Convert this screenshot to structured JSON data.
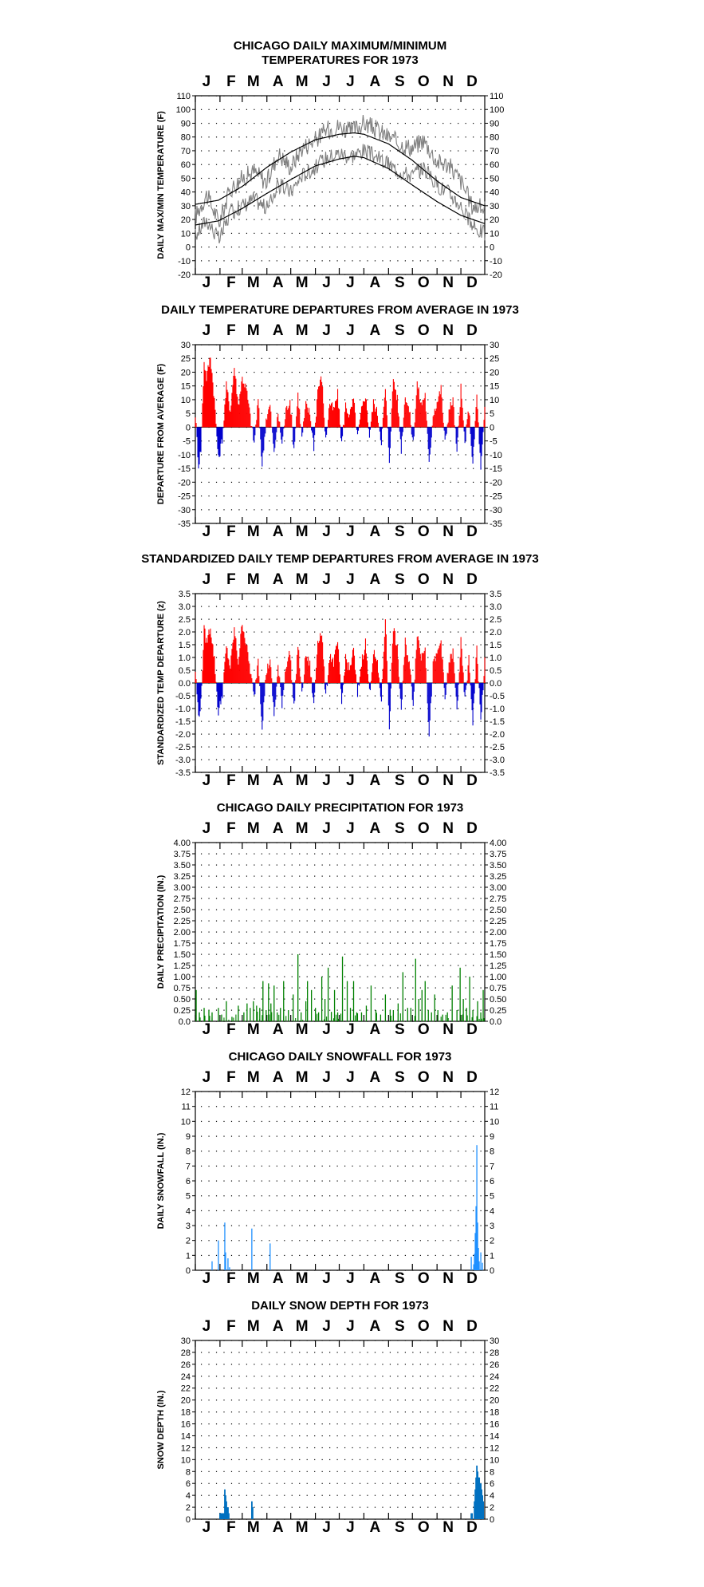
{
  "colors": {
    "warm": "#ff0000",
    "cool": "#0000cc",
    "max_temp": "#808080",
    "precip": "#008000",
    "snowfall": "#1e90ff",
    "snow_depth": "#0070c0",
    "grid": "#000000"
  },
  "chart_data": [
    {
      "id": "temps",
      "type": "line",
      "title_lines": [
        "CHICAGO DAILY MAXIMUM/MINIMUM",
        "TEMPERATURES FOR 1973"
      ],
      "ylabel": "DAILY MAX/MIN TEMPERATURE (F)",
      "months": [
        "J",
        "F",
        "M",
        "A",
        "M",
        "J",
        "J",
        "A",
        "S",
        "O",
        "N",
        "D"
      ],
      "ylim": [
        -20,
        110
      ],
      "yticks": [
        -20,
        -10,
        0,
        10,
        20,
        30,
        40,
        50,
        60,
        70,
        80,
        90,
        100,
        110
      ],
      "grid": true,
      "series": [],
      "daily_high_anchors": {
        "x": [
          1,
          15,
          31,
          45,
          60,
          75,
          91,
          105,
          121,
          135,
          152,
          166,
          182,
          196,
          213,
          227,
          244,
          258,
          274,
          288,
          305,
          319,
          335,
          349,
          365
        ],
        "y": [
          22,
          38,
          18,
          42,
          50,
          55,
          47,
          68,
          58,
          72,
          78,
          85,
          88,
          84,
          90,
          86,
          80,
          75,
          72,
          78,
          62,
          60,
          48,
          30,
          28
        ]
      },
      "daily_low_anchors": {
        "x": [
          1,
          15,
          31,
          45,
          60,
          75,
          91,
          105,
          121,
          135,
          152,
          166,
          182,
          196,
          213,
          227,
          244,
          258,
          274,
          288,
          305,
          319,
          335,
          349,
          365
        ],
        "y": [
          8,
          20,
          5,
          25,
          30,
          35,
          28,
          45,
          40,
          52,
          58,
          65,
          68,
          66,
          70,
          66,
          60,
          55,
          52,
          58,
          45,
          40,
          30,
          15,
          10
        ]
      },
      "normal_high_anchors": {
        "x": [
          1,
          30,
          60,
          91,
          121,
          152,
          182,
          201,
          213,
          244,
          274,
          305,
          335,
          365
        ],
        "y": [
          31,
          34,
          44,
          58,
          69,
          78,
          82,
          83,
          82,
          75,
          63,
          48,
          36,
          30
        ]
      },
      "normal_low_anchors": {
        "x": [
          1,
          30,
          60,
          91,
          121,
          152,
          182,
          201,
          213,
          244,
          274,
          305,
          335,
          365
        ],
        "y": [
          16,
          19,
          28,
          39,
          49,
          59,
          64,
          66,
          65,
          57,
          45,
          33,
          23,
          17
        ]
      }
    },
    {
      "id": "departures",
      "type": "bar",
      "title_lines": [
        "DAILY TEMPERATURE DEPARTURES FROM AVERAGE IN 1973"
      ],
      "ylabel": "DEPARTURE FROM AVERAGE (F)",
      "months": [
        "J",
        "F",
        "M",
        "A",
        "M",
        "J",
        "J",
        "A",
        "S",
        "O",
        "N",
        "D"
      ],
      "ylim": [
        -35,
        30
      ],
      "yticks": [
        -35,
        -30,
        -25,
        -20,
        -15,
        -10,
        -5,
        0,
        5,
        10,
        15,
        20,
        25,
        30
      ],
      "grid": true,
      "anchors": {
        "x": [
          1,
          5,
          8,
          12,
          15,
          20,
          25,
          30,
          35,
          40,
          45,
          50,
          55,
          60,
          65,
          70,
          75,
          80,
          85,
          90,
          95,
          100,
          105,
          110,
          115,
          120,
          125,
          130,
          135,
          140,
          145,
          150,
          155,
          160,
          165,
          170,
          175,
          180,
          185,
          190,
          195,
          200,
          205,
          210,
          215,
          220,
          225,
          230,
          235,
          240,
          245,
          250,
          255,
          260,
          265,
          270,
          275,
          280,
          285,
          290,
          295,
          300,
          305,
          310,
          315,
          320,
          325,
          330,
          335,
          340,
          345,
          350,
          355,
          360,
          365
        ],
        "y": [
          5,
          -14,
          -8,
          24,
          18,
          26,
          10,
          -12,
          -4,
          15,
          6,
          22,
          8,
          18,
          14,
          4,
          -6,
          10,
          -14,
          3,
          8,
          -10,
          5,
          -6,
          6,
          10,
          -8,
          12,
          -4,
          8,
          5,
          -7,
          14,
          18,
          -5,
          9,
          6,
          12,
          -6,
          8,
          4,
          10,
          -4,
          6,
          12,
          -3,
          9,
          5,
          -5,
          14,
          -12,
          18,
          10,
          -8,
          12,
          6,
          -6,
          16,
          8,
          12,
          -14,
          5,
          9,
          14,
          -6,
          6,
          10,
          -10,
          14,
          -6,
          7,
          -14,
          12,
          -16,
          6
        ]
      }
    },
    {
      "id": "standardized",
      "type": "bar",
      "title_lines": [
        "STANDARDIZED DAILY TEMP DEPARTURES FROM AVERAGE IN 1973"
      ],
      "ylabel": "STANDARDIZED TEMP DEPARTURE (z)",
      "months": [
        "J",
        "F",
        "M",
        "A",
        "M",
        "J",
        "J",
        "A",
        "S",
        "O",
        "N",
        "D"
      ],
      "ylim": [
        -3.5,
        3.5
      ],
      "yticks": [
        -3.5,
        -3.0,
        -2.5,
        -2.0,
        -1.5,
        -1.0,
        -0.5,
        0.0,
        0.5,
        1.0,
        1.5,
        2.0,
        2.5,
        3.0,
        3.5
      ],
      "grid": true,
      "anchors": {
        "x": [
          1,
          5,
          8,
          12,
          15,
          20,
          25,
          30,
          35,
          40,
          45,
          50,
          55,
          60,
          65,
          70,
          75,
          80,
          85,
          90,
          95,
          100,
          105,
          110,
          115,
          120,
          125,
          130,
          135,
          140,
          145,
          150,
          155,
          160,
          165,
          170,
          175,
          180,
          185,
          190,
          195,
          200,
          205,
          210,
          215,
          220,
          225,
          230,
          235,
          240,
          245,
          250,
          255,
          260,
          265,
          270,
          275,
          280,
          285,
          290,
          295,
          300,
          305,
          310,
          315,
          320,
          325,
          330,
          335,
          340,
          345,
          350,
          355,
          360,
          365
        ],
        "y": [
          0.5,
          -1.3,
          -0.8,
          2.1,
          1.6,
          2.2,
          0.9,
          -1.2,
          -0.4,
          1.4,
          0.6,
          2.1,
          0.8,
          2.4,
          1.5,
          0.5,
          -0.6,
          1.0,
          -1.7,
          0.4,
          0.9,
          -1.3,
          0.6,
          -0.8,
          0.7,
          1.2,
          -1.0,
          1.5,
          -0.5,
          1.1,
          0.7,
          -0.9,
          1.7,
          2.0,
          -0.6,
          1.1,
          0.8,
          1.6,
          -0.8,
          1.0,
          0.5,
          1.3,
          -0.5,
          0.8,
          1.6,
          -0.4,
          1.2,
          0.7,
          -0.7,
          2.6,
          -1.7,
          2.2,
          1.3,
          -1.1,
          1.6,
          0.8,
          -0.8,
          2.0,
          1.0,
          1.5,
          -2.1,
          0.7,
          1.1,
          1.7,
          -0.7,
          0.8,
          1.2,
          -1.1,
          1.6,
          -0.7,
          0.9,
          -1.5,
          1.4,
          -1.5,
          0.8
        ]
      }
    },
    {
      "id": "precip",
      "type": "bar",
      "title_lines": [
        "CHICAGO DAILY PRECIPITATION FOR 1973"
      ],
      "ylabel": "DAILY PRECIPITATION (IN.)",
      "months": [
        "J",
        "F",
        "M",
        "A",
        "M",
        "J",
        "J",
        "A",
        "S",
        "O",
        "N",
        "D"
      ],
      "ylim": [
        0,
        4.0
      ],
      "yticks": [
        0.0,
        0.25,
        0.5,
        0.75,
        1.0,
        1.25,
        1.5,
        1.75,
        2.0,
        2.25,
        2.5,
        2.75,
        3.0,
        3.25,
        3.5,
        3.75,
        4.0
      ],
      "ytick_labels": [
        "0.0",
        "0.25",
        "0.50",
        "0.75",
        "1.00",
        "1.25",
        "1.50",
        "1.75",
        "2.00",
        "2.25",
        "2.50",
        "2.75",
        "3.00",
        "3.25",
        "3.50",
        "3.75",
        "4.00"
      ],
      "grid": true,
      "events": {
        "x": [
          2,
          6,
          12,
          18,
          22,
          30,
          34,
          40,
          47,
          55,
          62,
          66,
          70,
          74,
          78,
          82,
          86,
          90,
          93,
          96,
          100,
          104,
          108,
          112,
          118,
          124,
          130,
          134,
          140,
          142,
          147,
          152,
          156,
          160,
          164,
          168,
          172,
          176,
          180,
          186,
          192,
          196,
          200,
          204,
          210,
          216,
          222,
          228,
          234,
          240,
          246,
          250,
          256,
          262,
          268,
          272,
          278,
          282,
          286,
          290,
          294,
          298,
          302,
          306,
          312,
          318,
          324,
          330,
          334,
          338,
          342,
          346,
          350,
          356,
          360,
          363
        ],
        "y": [
          0.7,
          0.2,
          0.3,
          0.25,
          0.2,
          0.3,
          0.15,
          0.45,
          0.1,
          0.35,
          0.2,
          0.4,
          0.3,
          0.45,
          0.35,
          0.3,
          0.9,
          0.25,
          0.85,
          0.4,
          0.8,
          0.2,
          0.3,
          0.9,
          0.25,
          0.6,
          1.5,
          0.2,
          0.45,
          0.9,
          0.7,
          0.3,
          0.2,
          1.0,
          0.5,
          1.2,
          0.2,
          0.7,
          0.2,
          1.45,
          0.9,
          0.3,
          0.9,
          0.2,
          0.2,
          0.35,
          0.8,
          0.25,
          0.15,
          0.6,
          0.25,
          0.25,
          0.4,
          1.1,
          0.3,
          0.3,
          1.4,
          0.5,
          0.7,
          0.9,
          0.25,
          0.2,
          0.6,
          0.25,
          0.15,
          0.2,
          0.8,
          0.25,
          1.2,
          0.5,
          0.3,
          1.0,
          0.25,
          0.45,
          0.2,
          0.7
        ]
      }
    },
    {
      "id": "snowfall",
      "type": "bar",
      "title_lines": [
        "CHICAGO DAILY SNOWFALL FOR 1973"
      ],
      "ylabel": "DAILY SNOWFALL (IN.)",
      "months": [
        "J",
        "F",
        "M",
        "A",
        "M",
        "J",
        "J",
        "A",
        "S",
        "O",
        "N",
        "D"
      ],
      "ylim": [
        0,
        12
      ],
      "yticks": [
        0,
        1,
        2,
        3,
        4,
        5,
        6,
        7,
        8,
        9,
        10,
        11,
        12
      ],
      "grid": true,
      "events": {
        "x": [
          22,
          30,
          38,
          39,
          42,
          44,
          72,
          95,
          348,
          351,
          352,
          353,
          354,
          355,
          356,
          357,
          358,
          360,
          362
        ],
        "y": [
          0.6,
          2.0,
          3.2,
          1.2,
          0.8,
          0.2,
          2.8,
          1.8,
          0.9,
          0.4,
          1.1,
          2.5,
          4.3,
          8.4,
          3.2,
          1.5,
          0.6,
          1.2,
          0.5
        ]
      }
    },
    {
      "id": "snow_depth",
      "type": "area",
      "title_lines": [
        "DAILY SNOW DEPTH FOR 1973"
      ],
      "ylabel": "SNOW DEPTH (IN.)",
      "months": [
        "J",
        "F",
        "M",
        "A",
        "M",
        "J",
        "J",
        "A",
        "S",
        "O",
        "N",
        "D"
      ],
      "ylim": [
        0,
        30
      ],
      "yticks": [
        0,
        2,
        4,
        6,
        8,
        10,
        12,
        14,
        16,
        18,
        20,
        22,
        24,
        26,
        28,
        30
      ],
      "grid": true,
      "events": {
        "x": [
          32,
          33,
          34,
          35,
          36,
          37,
          38,
          39,
          40,
          41,
          42,
          43,
          44,
          45,
          46,
          72,
          73,
          348,
          349,
          352,
          353,
          354,
          355,
          356,
          357,
          358,
          359,
          360,
          361,
          362,
          363
        ],
        "y": [
          1,
          1,
          1,
          1,
          1,
          1,
          5,
          4,
          3,
          2,
          2,
          1,
          0,
          0,
          0,
          3,
          2,
          1,
          1,
          3,
          5,
          7,
          9,
          8,
          7,
          7,
          6,
          6,
          5,
          4,
          3
        ]
      }
    }
  ]
}
